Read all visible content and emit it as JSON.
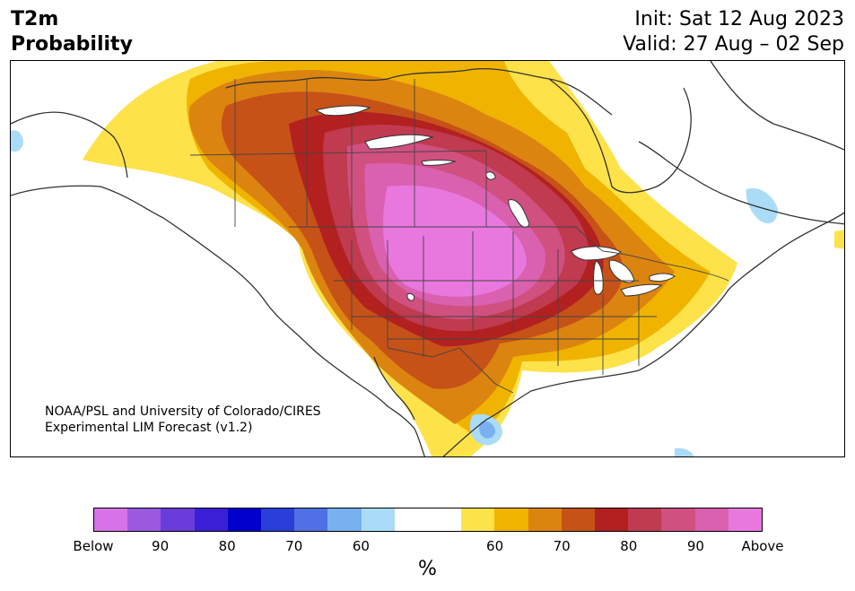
{
  "header": {
    "title_line1": "T2m",
    "title_line2": "Probability",
    "init": "Init: Sat 12 Aug 2023",
    "valid": "Valid: 27 Aug – 02 Sep"
  },
  "map": {
    "credit_line1": "NOAA/PSL and University of Colorado/CIRES",
    "credit_line2": "Experimental LIM Forecast (v1.2)"
  },
  "colorbar": {
    "colors": [
      "#d673e8",
      "#9b59e0",
      "#6a3cdb",
      "#3a1fd6",
      "#0000cc",
      "#2a3ed9",
      "#5070e5",
      "#78b0f0",
      "#aadcf8",
      "#ffffff",
      "#ffffff",
      "#fde24a",
      "#f0b400",
      "#dc8410",
      "#c65218",
      "#b32020",
      "#c03a50",
      "#d05080",
      "#da60b0",
      "#e878de"
    ],
    "tick_labels": [
      "Below",
      "90",
      "80",
      "70",
      "60",
      "60",
      "70",
      "80",
      "90",
      "Above"
    ],
    "units": "%"
  }
}
